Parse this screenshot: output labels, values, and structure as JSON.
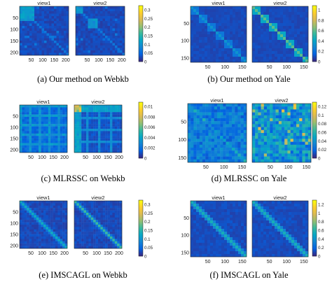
{
  "colormap": {
    "name": "parula",
    "stops": [
      "#352a87",
      "#0363e1",
      "#1485d4",
      "#06a7c6",
      "#38b99e",
      "#92bf73",
      "#d9ba56",
      "#fcce2e",
      "#f9fb0e"
    ]
  },
  "background_dark": "#3a34a0",
  "panels": [
    {
      "caption": "(a)  Our method on Webkb",
      "views": [
        "view1",
        "view2"
      ],
      "y_ticks": [
        "50",
        "100",
        "150",
        "200"
      ],
      "x_ticks": [
        "50",
        "100",
        "150",
        "200"
      ],
      "colorbar_ticks": [
        "0.3",
        "0.25",
        "0.2",
        "0.15",
        "0.1",
        "0.05",
        "0"
      ],
      "pattern": "weak-diagonal"
    },
    {
      "caption": "(b)  Our method on Yale",
      "views": [
        "view1",
        "view2"
      ],
      "y_ticks": [
        "50",
        "100",
        "150"
      ],
      "x_ticks": [
        "50",
        "100",
        "150"
      ],
      "colorbar_ticks": [
        "1",
        "0.8",
        "0.6",
        "0.4",
        "0.2",
        "0"
      ],
      "pattern": "block-diagonal"
    },
    {
      "caption": "(c)  MLRSSC on Webkb",
      "views": [
        "view1",
        "view2"
      ],
      "y_ticks": [
        "50",
        "100",
        "150",
        "200"
      ],
      "x_ticks": [
        "50",
        "100",
        "150",
        "200"
      ],
      "colorbar_ticks": [
        "0.01",
        "0.008",
        "0.006",
        "0.004",
        "0.002",
        "0"
      ],
      "pattern": "dense-grid"
    },
    {
      "caption": "(d)  MLRSSC on Yale",
      "views": [
        "view1",
        "view2"
      ],
      "y_ticks": [
        "50",
        "100",
        "150"
      ],
      "x_ticks": [
        "50",
        "100",
        "150"
      ],
      "colorbar_ticks": [
        "0.12",
        "0.1",
        "0.08",
        "0.06",
        "0.04",
        "0.02",
        "0"
      ],
      "pattern": "speckle"
    },
    {
      "caption": "(e)  IMSCAGL on Webkb",
      "views": [
        "view1",
        "view2"
      ],
      "y_ticks": [
        "50",
        "100",
        "150",
        "200"
      ],
      "x_ticks": [
        "50",
        "100",
        "150",
        "200"
      ],
      "colorbar_ticks": [
        "0.3",
        "0.25",
        "0.2",
        "0.15",
        "0.1",
        "0.05",
        "0"
      ],
      "pattern": "diagonal"
    },
    {
      "caption": "(f)  IMSCAGL on Yale",
      "views": [
        "view1",
        "view2"
      ],
      "y_ticks": [
        "50",
        "100",
        "150"
      ],
      "x_ticks": [
        "50",
        "100",
        "150"
      ],
      "colorbar_ticks": [
        "1.2",
        "1",
        "0.8",
        "0.6",
        "0.4",
        "0.2",
        "0"
      ],
      "pattern": "diagonal-yale"
    }
  ]
}
